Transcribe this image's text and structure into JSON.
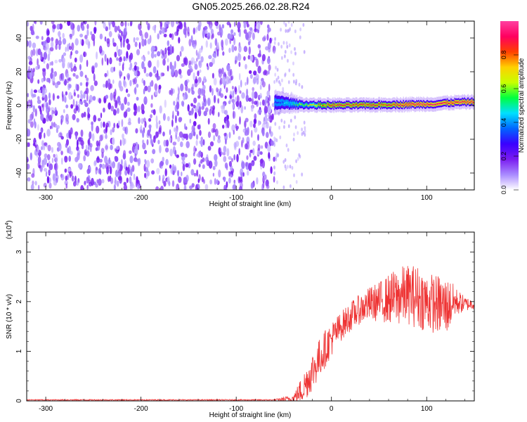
{
  "figure": {
    "title": "GN05.2025.266.02.28.R24"
  },
  "chart_data": [
    {
      "type": "heatmap",
      "xlabel": "Height of straight line (km)",
      "ylabel": "Frequency (Hz)",
      "xlim": [
        -320,
        150
      ],
      "ylim": [
        -50,
        50
      ],
      "xticks": [
        -300,
        -200,
        -100,
        0,
        100
      ],
      "yticks": [
        -40,
        -20,
        0,
        20,
        40
      ],
      "colorbar": {
        "label": "Normalized spectral amplitude",
        "range": [
          0,
          1
        ],
        "ticks": [
          "0.0",
          "0.2",
          "0.4",
          "0.6",
          "0.8"
        ],
        "colors": [
          "#ffffff",
          "#a98aff",
          "#7a1cf0",
          "#3a00ff",
          "#0066ff",
          "#00e0ff",
          "#00ff40",
          "#c8ff00",
          "#ffd000",
          "#ff4000",
          "#ff0060",
          "#ff40a0"
        ]
      },
      "noise_region_x": [
        -320,
        -60
      ],
      "noise_amplitude_range": [
        0.05,
        0.2
      ],
      "signal_line": {
        "x": [
          -60,
          -50,
          -40,
          -30,
          -20,
          -10,
          0,
          20,
          40,
          60,
          80,
          100,
          110,
          120,
          130,
          140,
          150
        ],
        "frequency": [
          2,
          1.5,
          1,
          0.5,
          0.3,
          0.2,
          0.2,
          0.2,
          0.3,
          0.5,
          0.6,
          0.8,
          1.0,
          1.5,
          1.8,
          2.0,
          2.2
        ],
        "amplitude": [
          0.3,
          0.4,
          0.5,
          0.6,
          0.7,
          0.8,
          0.85,
          0.85,
          0.85,
          0.85,
          0.9,
          0.9,
          0.9,
          0.9,
          0.9,
          0.9,
          0.9
        ]
      },
      "grid": false
    },
    {
      "type": "line",
      "xlabel": "Height of straight line (km)",
      "ylabel": "SNR (10 * v/v)",
      "y_multiplier": "(x10",
      "y_multiplier_exp": "4",
      "xlim": [
        -320,
        150
      ],
      "ylim": [
        0,
        3.4
      ],
      "xticks": [
        -300,
        -200,
        -100,
        0,
        100
      ],
      "yticks": [
        0,
        1,
        2,
        3
      ],
      "color": "#ee3333",
      "envelope": {
        "x": [
          -320,
          -60,
          -40,
          -30,
          -20,
          -10,
          0,
          10,
          20,
          30,
          40,
          50,
          60,
          70,
          80,
          90,
          100,
          110,
          120,
          125,
          130,
          140,
          150
        ],
        "mean": [
          0.02,
          0.02,
          0.05,
          0.25,
          0.6,
          0.95,
          1.25,
          1.5,
          1.7,
          1.85,
          1.95,
          2.0,
          2.05,
          2.1,
          2.15,
          2.1,
          2.0,
          1.95,
          1.9,
          1.95,
          2.0,
          1.95,
          1.95
        ],
        "spread": [
          0.01,
          0.01,
          0.08,
          0.3,
          0.4,
          0.4,
          0.35,
          0.3,
          0.3,
          0.3,
          0.35,
          0.4,
          0.5,
          0.6,
          0.6,
          0.65,
          0.6,
          0.6,
          0.6,
          0.5,
          0.3,
          0.15,
          0.1
        ]
      },
      "max_value": 3.4,
      "grid": false
    }
  ]
}
